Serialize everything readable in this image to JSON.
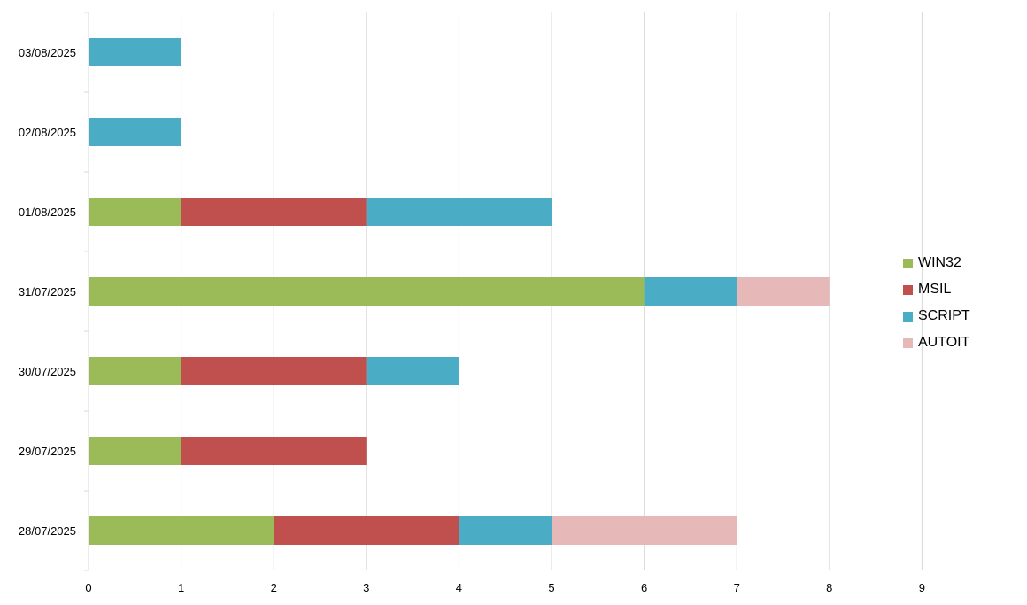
{
  "chart_data": {
    "type": "bar",
    "orientation": "horizontal",
    "stacked": true,
    "categories": [
      "28/07/2025",
      "29/07/2025",
      "30/07/2025",
      "31/07/2025",
      "01/08/2025",
      "02/08/2025",
      "03/08/2025"
    ],
    "series": [
      {
        "name": "WIN32",
        "color": "#9bbb59",
        "values": [
          2,
          1,
          1,
          6,
          1,
          0,
          0
        ]
      },
      {
        "name": "MSIL",
        "color": "#c0504d",
        "values": [
          2,
          2,
          2,
          0,
          2,
          0,
          0
        ]
      },
      {
        "name": "SCRIPT",
        "color": "#4bacc6",
        "values": [
          1,
          0,
          1,
          1,
          2,
          1,
          1
        ]
      },
      {
        "name": "AUTOIT",
        "color": "#e6b9b8",
        "values": [
          2,
          0,
          0,
          1,
          0,
          0,
          0
        ]
      }
    ],
    "xlim": [
      0,
      9
    ],
    "xticks": [
      "0",
      "1",
      "2",
      "3",
      "4",
      "5",
      "6",
      "7",
      "8",
      "9"
    ],
    "grid": true,
    "legend_position": "right",
    "title": "",
    "xlabel": "",
    "ylabel": ""
  }
}
